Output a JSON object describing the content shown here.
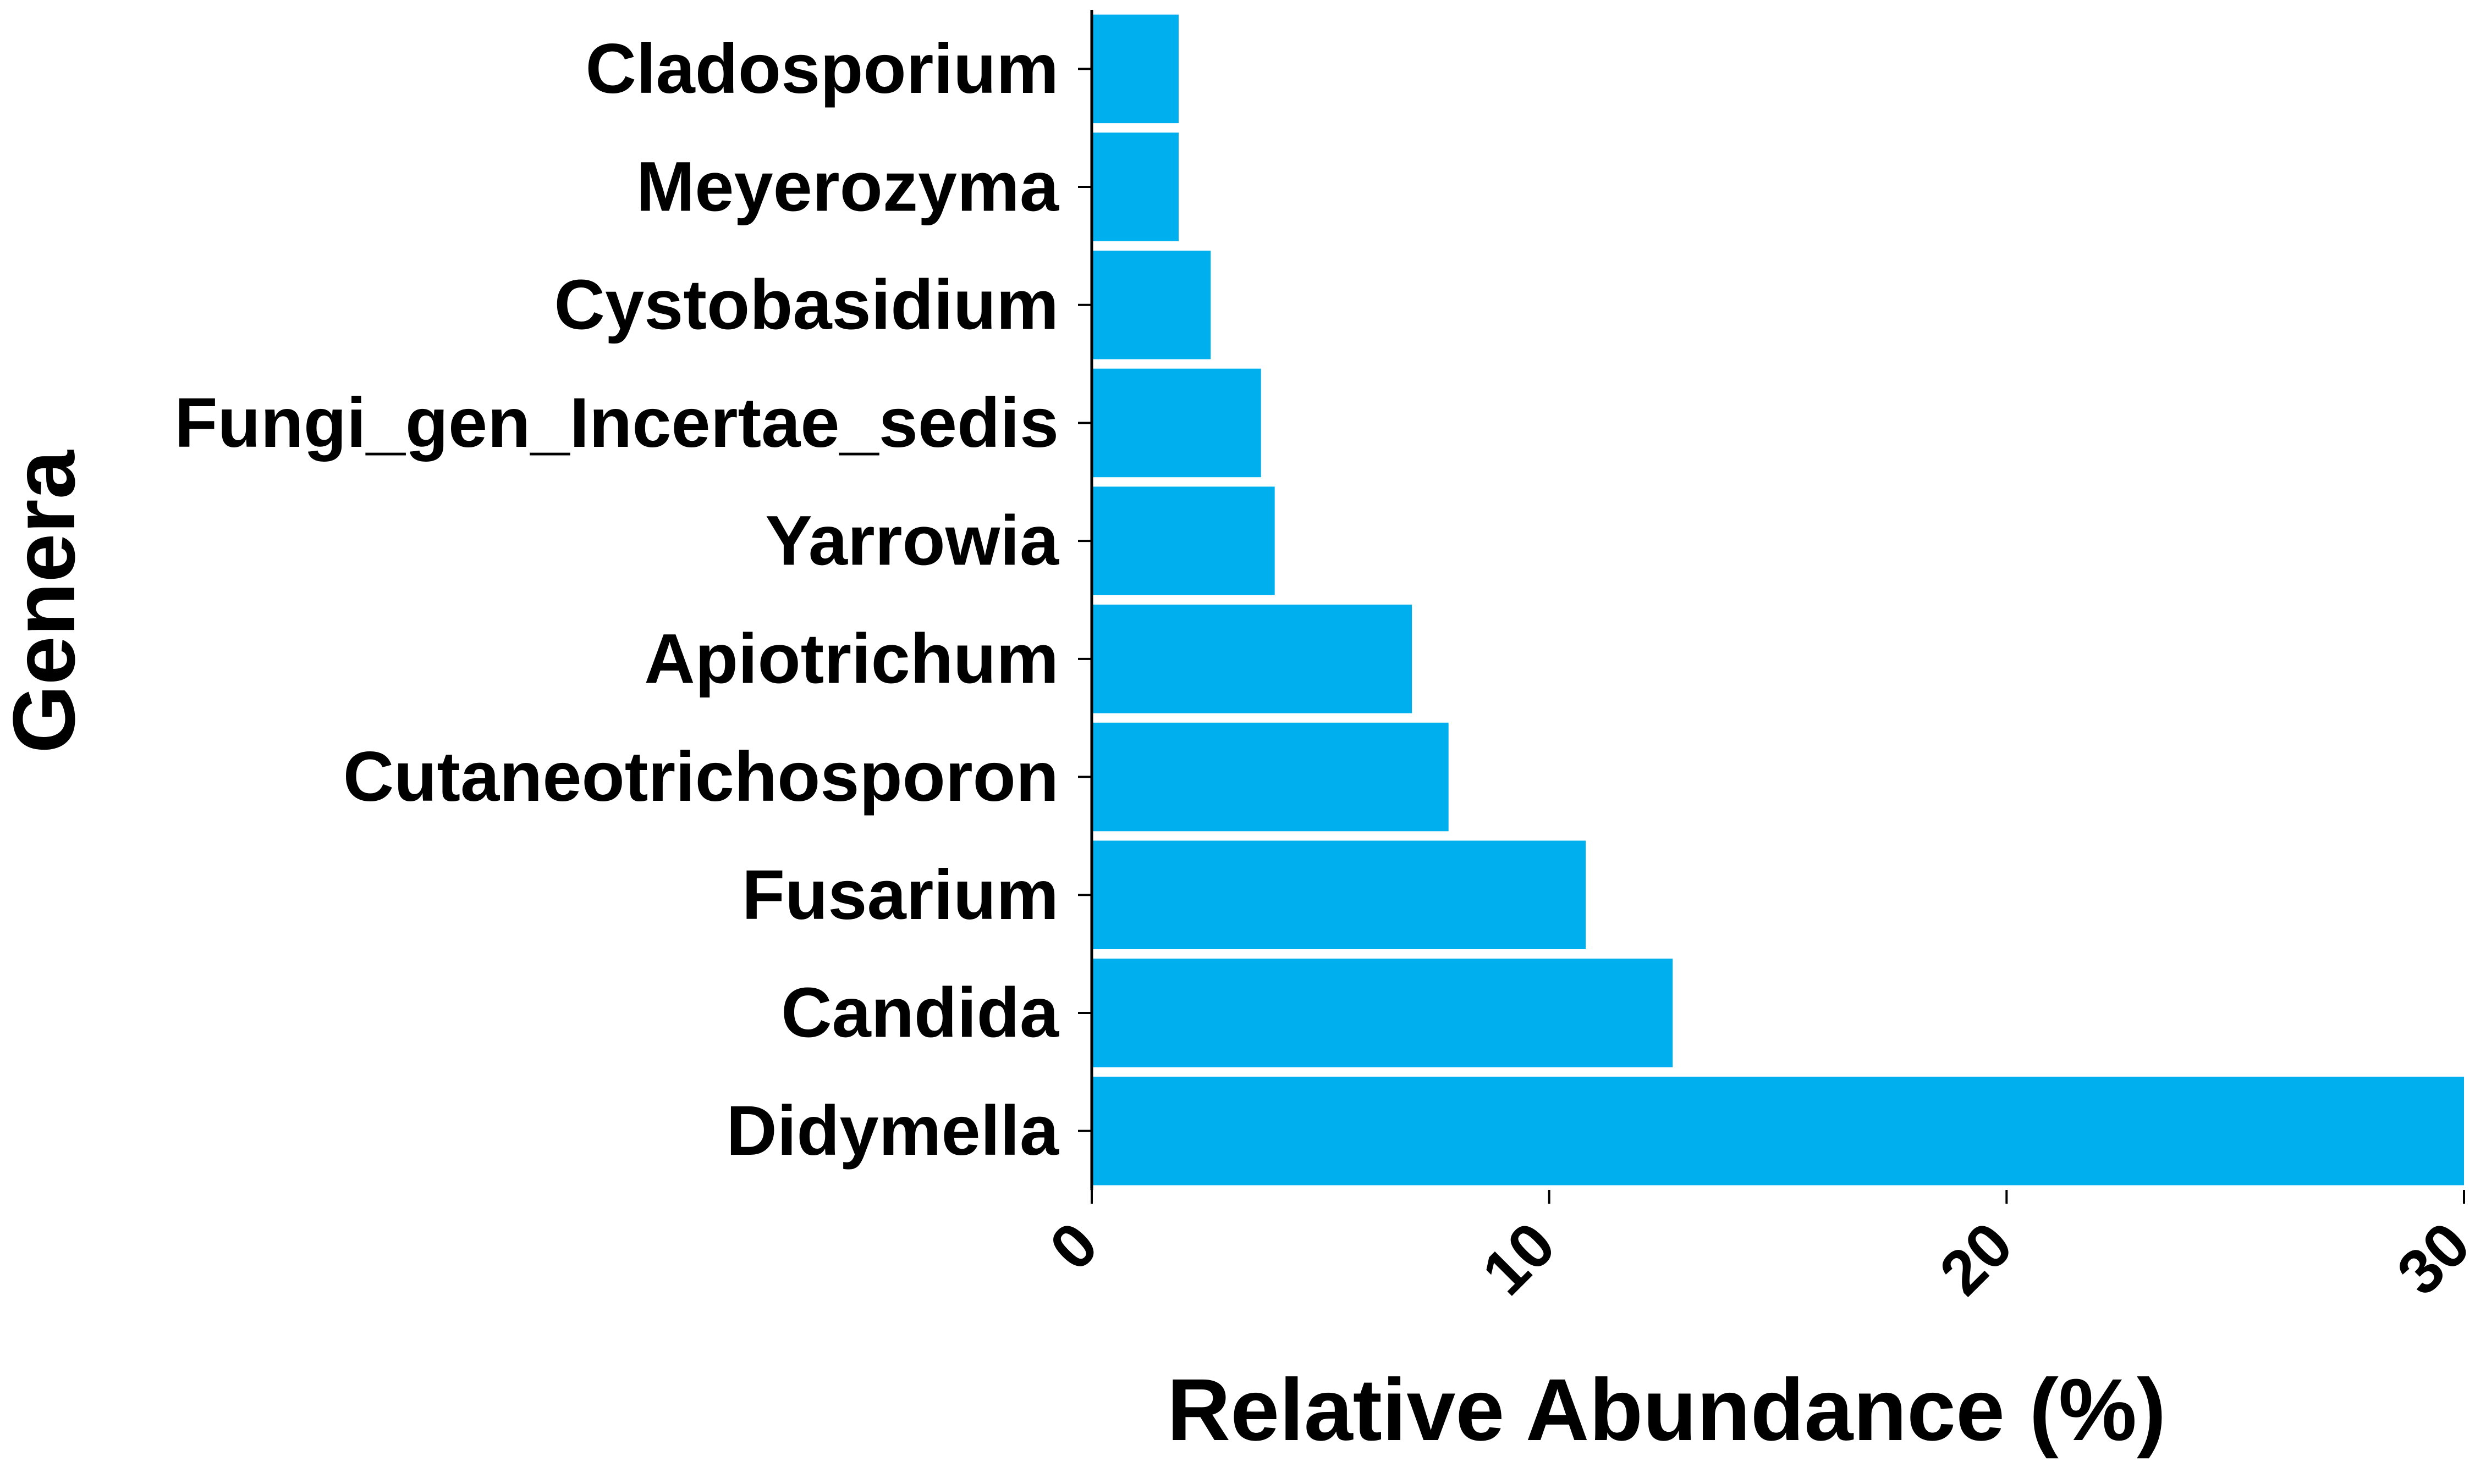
{
  "chart_data": {
    "type": "bar",
    "orientation": "horizontal",
    "categories": [
      "Cladosporium",
      "Meyerozyma",
      "Cystobasidium",
      "Fungi_gen_Incertae_sedis",
      "Yarrowia",
      "Apiotrichum",
      "Cutaneotrichosporon",
      "Fusarium",
      "Candida",
      "Didymella"
    ],
    "values": [
      1.9,
      1.9,
      2.6,
      3.7,
      4.0,
      7.0,
      7.8,
      10.8,
      12.7,
      30.0
    ],
    "xlabel": "Relative Abundance (%)",
    "ylabel": "Genera",
    "xlim": [
      0,
      30
    ],
    "xticks": [
      "0",
      "10",
      "20",
      "30"
    ],
    "xtick_values": [
      0,
      10,
      20,
      30
    ],
    "grid": false,
    "legend": "none",
    "colors": {
      "bar": "#00b0ee",
      "axis": "#000000"
    }
  }
}
